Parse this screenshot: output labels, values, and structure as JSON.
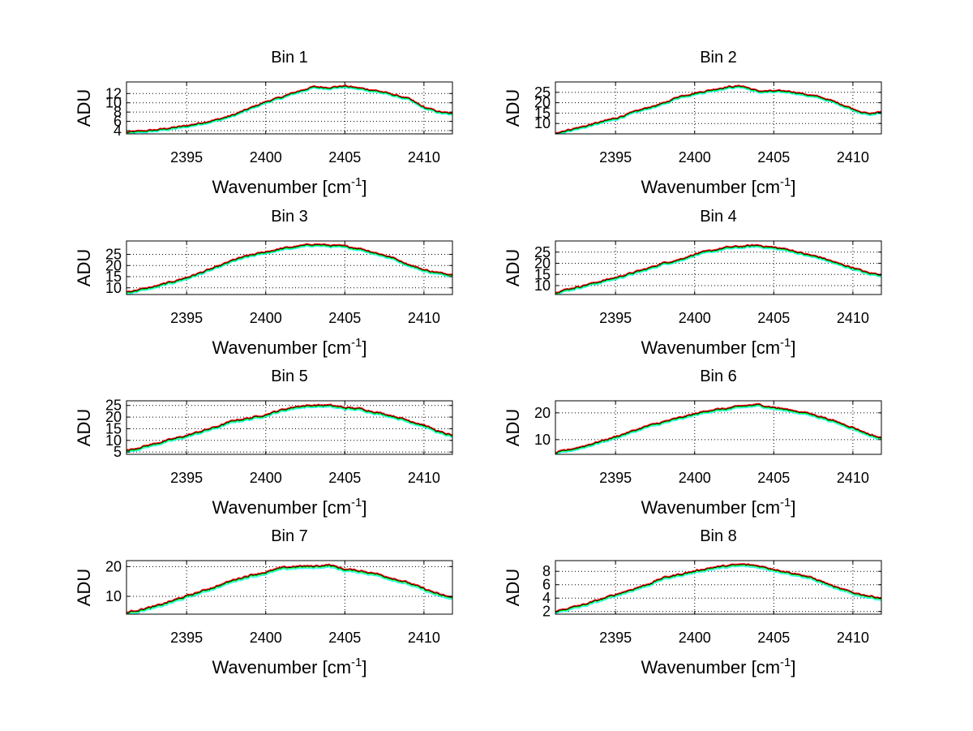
{
  "figure": {
    "background": "#ffffff"
  },
  "chart_data": [
    {
      "type": "line",
      "title": "Bin 1",
      "xlabel": "Wavenumber [cm-1]",
      "xlabel_parts": {
        "prefix": "Wavenumber [cm",
        "sup": "-1",
        "suffix": "]"
      },
      "ylabel": "ADU",
      "xlim": [
        2391.2,
        2411.8
      ],
      "ylim": [
        3.3,
        14.5
      ],
      "xticks": [
        2395,
        2400,
        2405,
        2410
      ],
      "yticks": [
        4,
        6,
        8,
        10,
        12
      ],
      "grid": true,
      "series": [
        {
          "color": "#00ffff",
          "offset": -0.35
        },
        {
          "color": "#00ff00",
          "offset": -0.15
        },
        {
          "color": "#000000",
          "offset": 0
        },
        {
          "color": "#ff0000",
          "offset": 0.15
        }
      ],
      "curve": {
        "x": [
          2391.2,
          2393,
          2395,
          2397,
          2398,
          2399,
          2400,
          2401,
          2402,
          2403,
          2404,
          2405,
          2406,
          2407,
          2408,
          2409,
          2410,
          2411,
          2411.8
        ],
        "y": [
          3.6,
          4.1,
          5.0,
          6.4,
          7.4,
          8.8,
          10.2,
          11.2,
          12.4,
          13.4,
          13.3,
          13.6,
          13.1,
          12.6,
          11.8,
          10.9,
          9.0,
          8.0,
          7.6
        ]
      }
    },
    {
      "type": "line",
      "title": "Bin 2",
      "xlabel": "Wavenumber [cm-1]",
      "xlabel_parts": {
        "prefix": "Wavenumber [cm",
        "sup": "-1",
        "suffix": "]"
      },
      "ylabel": "ADU",
      "xlim": [
        2391.2,
        2411.8
      ],
      "ylim": [
        5,
        30
      ],
      "xticks": [
        2395,
        2400,
        2405,
        2410
      ],
      "yticks": [
        10,
        15,
        20,
        25
      ],
      "grid": true,
      "series": [
        {
          "color": "#00ffff",
          "offset": -0.8
        },
        {
          "color": "#00ff00",
          "offset": -0.35
        },
        {
          "color": "#000000",
          "offset": 0
        },
        {
          "color": "#ff0000",
          "offset": 0.35
        }
      ],
      "curve": {
        "x": [
          2391.2,
          2393,
          2395,
          2397,
          2398,
          2399,
          2400,
          2401,
          2402,
          2403,
          2404,
          2405,
          2406,
          2407,
          2408,
          2409,
          2410,
          2411,
          2411.8
        ],
        "y": [
          5.5,
          8.5,
          12.5,
          17.5,
          19.5,
          23.0,
          24.5,
          26.0,
          27.5,
          28.0,
          25.5,
          25.5,
          25.5,
          24.0,
          22.5,
          20.0,
          17.0,
          14.5,
          15.5
        ]
      }
    },
    {
      "type": "line",
      "title": "Bin 3",
      "xlabel": "Wavenumber [cm-1]",
      "xlabel_parts": {
        "prefix": "Wavenumber [cm",
        "sup": "-1",
        "suffix": "]"
      },
      "ylabel": "ADU",
      "xlim": [
        2391.2,
        2411.8
      ],
      "ylim": [
        7,
        31
      ],
      "xticks": [
        2395,
        2400,
        2405,
        2410
      ],
      "yticks": [
        10,
        15,
        20,
        25
      ],
      "grid": true,
      "series": [
        {
          "color": "#00ffff",
          "offset": -0.8
        },
        {
          "color": "#00ff00",
          "offset": -0.35
        },
        {
          "color": "#000000",
          "offset": 0
        },
        {
          "color": "#ff0000",
          "offset": 0.35
        }
      ],
      "curve": {
        "x": [
          2391.2,
          2393,
          2395,
          2397,
          2398,
          2399,
          2400,
          2401,
          2402,
          2403,
          2404,
          2405,
          2406,
          2407,
          2408,
          2409,
          2410,
          2411,
          2411.8
        ],
        "y": [
          8.0,
          10.5,
          14.5,
          19.5,
          22.5,
          24.5,
          26.0,
          27.5,
          28.5,
          29.5,
          29.0,
          28.5,
          27.5,
          25.5,
          23.5,
          20.5,
          18.0,
          16.5,
          16.0
        ]
      }
    },
    {
      "type": "line",
      "title": "Bin 4",
      "xlabel": "Wavenumber [cm-1]",
      "xlabel_parts": {
        "prefix": "Wavenumber [cm",
        "sup": "-1",
        "suffix": "]"
      },
      "ylabel": "ADU",
      "xlim": [
        2391.2,
        2411.8
      ],
      "ylim": [
        6,
        30
      ],
      "xticks": [
        2395,
        2400,
        2405,
        2410
      ],
      "yticks": [
        10,
        15,
        20,
        25
      ],
      "grid": true,
      "series": [
        {
          "color": "#00ffff",
          "offset": -0.8
        },
        {
          "color": "#00ff00",
          "offset": -0.35
        },
        {
          "color": "#000000",
          "offset": 0
        },
        {
          "color": "#ff0000",
          "offset": 0.35
        }
      ],
      "curve": {
        "x": [
          2391.2,
          2393,
          2395,
          2397,
          2398,
          2399,
          2400,
          2401,
          2402,
          2403,
          2404,
          2405,
          2406,
          2407,
          2408,
          2409,
          2410,
          2411,
          2411.8
        ],
        "y": [
          7.0,
          10.0,
          13.5,
          17.5,
          20.0,
          21.5,
          24.0,
          25.5,
          27.0,
          27.5,
          28.0,
          27.0,
          26.0,
          24.0,
          22.5,
          20.0,
          18.0,
          15.5,
          15.0
        ]
      }
    },
    {
      "type": "line",
      "title": "Bin 5",
      "xlabel": "Wavenumber [cm-1]",
      "xlabel_parts": {
        "prefix": "Wavenumber [cm",
        "sup": "-1",
        "suffix": "]"
      },
      "ylabel": "ADU",
      "xlim": [
        2391.2,
        2411.8
      ],
      "ylim": [
        4,
        27
      ],
      "xticks": [
        2395,
        2400,
        2405,
        2410
      ],
      "yticks": [
        5,
        10,
        15,
        20,
        25
      ],
      "grid": true,
      "series": [
        {
          "color": "#00ffff",
          "offset": -0.8
        },
        {
          "color": "#00ff00",
          "offset": -0.35
        },
        {
          "color": "#000000",
          "offset": 0
        },
        {
          "color": "#ff0000",
          "offset": 0.35
        }
      ],
      "curve": {
        "x": [
          2391.2,
          2393,
          2395,
          2397,
          2398,
          2399,
          2400,
          2401,
          2402,
          2403,
          2404,
          2405,
          2406,
          2407,
          2408,
          2409,
          2410,
          2411,
          2411.8
        ],
        "y": [
          5.5,
          8.5,
          12.0,
          16.0,
          18.5,
          19.5,
          21.0,
          23.0,
          24.5,
          25.0,
          25.0,
          24.0,
          23.5,
          22.0,
          20.5,
          18.5,
          16.5,
          13.5,
          12.0
        ]
      }
    },
    {
      "type": "line",
      "title": "Bin 6",
      "xlabel": "Wavenumber [cm-1]",
      "xlabel_parts": {
        "prefix": "Wavenumber [cm",
        "sup": "-1",
        "suffix": "]"
      },
      "ylabel": "ADU",
      "xlim": [
        2391.2,
        2411.8
      ],
      "ylim": [
        4.5,
        24.5
      ],
      "xticks": [
        2395,
        2400,
        2405,
        2410
      ],
      "yticks": [
        10,
        20
      ],
      "grid": true,
      "series": [
        {
          "color": "#00ffff",
          "offset": -0.7
        },
        {
          "color": "#00ff00",
          "offset": -0.3
        },
        {
          "color": "#000000",
          "offset": 0
        },
        {
          "color": "#ff0000",
          "offset": 0.3
        }
      ],
      "curve": {
        "x": [
          2391.2,
          2393,
          2395,
          2397,
          2398,
          2399,
          2400,
          2401,
          2402,
          2403,
          2404,
          2405,
          2406,
          2407,
          2408,
          2409,
          2410,
          2411,
          2411.8
        ],
        "y": [
          5.0,
          7.5,
          11.0,
          15.0,
          16.5,
          18.0,
          19.5,
          21.0,
          21.5,
          22.5,
          23.0,
          22.0,
          21.0,
          20.0,
          18.5,
          16.5,
          14.5,
          12.0,
          10.5
        ]
      }
    },
    {
      "type": "line",
      "title": "Bin 7",
      "xlabel": "Wavenumber [cm-1]",
      "xlabel_parts": {
        "prefix": "Wavenumber [cm",
        "sup": "-1",
        "suffix": "]"
      },
      "ylabel": "ADU",
      "xlim": [
        2391.2,
        2411.8
      ],
      "ylim": [
        4,
        22
      ],
      "xticks": [
        2395,
        2400,
        2405,
        2410
      ],
      "yticks": [
        10,
        20
      ],
      "grid": true,
      "series": [
        {
          "color": "#00ffff",
          "offset": -0.7
        },
        {
          "color": "#00ff00",
          "offset": -0.3
        },
        {
          "color": "#000000",
          "offset": 0
        },
        {
          "color": "#ff0000",
          "offset": 0.3
        }
      ],
      "curve": {
        "x": [
          2391.2,
          2393,
          2395,
          2397,
          2398,
          2399,
          2400,
          2401,
          2402,
          2403,
          2404,
          2405,
          2406,
          2407,
          2408,
          2409,
          2410,
          2411,
          2411.8
        ],
        "y": [
          4.5,
          6.5,
          10.0,
          13.5,
          15.5,
          17.0,
          18.0,
          19.5,
          20.0,
          20.0,
          20.5,
          19.0,
          18.5,
          17.5,
          16.0,
          14.5,
          12.5,
          10.5,
          9.5
        ]
      }
    },
    {
      "type": "line",
      "title": "Bin 8",
      "xlabel": "Wavenumber [cm-1]",
      "xlabel_parts": {
        "prefix": "Wavenumber [cm",
        "sup": "-1",
        "suffix": "]"
      },
      "ylabel": "ADU",
      "xlim": [
        2391.2,
        2411.8
      ],
      "ylim": [
        1.6,
        9.6
      ],
      "xticks": [
        2395,
        2400,
        2405,
        2410
      ],
      "yticks": [
        2,
        4,
        6,
        8
      ],
      "grid": true,
      "series": [
        {
          "color": "#00ffff",
          "offset": -0.3
        },
        {
          "color": "#00ff00",
          "offset": -0.12
        },
        {
          "color": "#000000",
          "offset": 0
        },
        {
          "color": "#ff0000",
          "offset": 0.12
        }
      ],
      "curve": {
        "x": [
          2391.2,
          2393,
          2395,
          2397,
          2398,
          2399,
          2400,
          2401,
          2402,
          2403,
          2404,
          2405,
          2406,
          2407,
          2408,
          2409,
          2410,
          2411,
          2411.8
        ],
        "y": [
          2.0,
          3.0,
          4.5,
          6.0,
          7.0,
          7.5,
          8.0,
          8.5,
          8.8,
          9.0,
          8.8,
          8.3,
          7.8,
          7.3,
          6.5,
          5.5,
          4.8,
          4.3,
          4.0
        ]
      }
    }
  ]
}
